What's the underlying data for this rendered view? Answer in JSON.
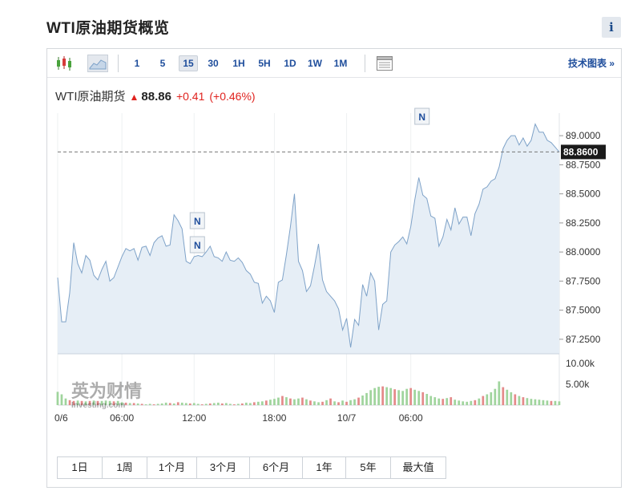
{
  "page": {
    "title": "WTI原油期货概览",
    "info_label": "i"
  },
  "toolbar": {
    "intervals": [
      "1",
      "5",
      "15",
      "30",
      "1H",
      "5H",
      "1D",
      "1W",
      "1M"
    ],
    "active_interval": "15",
    "tech_chart_link": "技术图表 »",
    "icons": [
      "candlestick-icon",
      "area-chart-icon",
      "table-icon"
    ]
  },
  "quote": {
    "name": "WTI原油期货",
    "price": "88.86",
    "change": "+0.41",
    "change_pct": "(+0.46%)"
  },
  "ranges": [
    "1日",
    "1周",
    "1个月",
    "3个月",
    "6个月",
    "1年",
    "5年",
    "最大值"
  ],
  "watermark": {
    "cn": "英为财情",
    "en": "Investing.com"
  },
  "colors": {
    "up": "#e0231f",
    "link": "#1f4e9c",
    "area_fill": "#e6eef6",
    "area_line": "#7ea2c8",
    "vol_up": "#9fd49c",
    "vol_down": "#e48989"
  },
  "chart_data": {
    "type": "area",
    "ylim": [
      87.125,
      89.125
    ],
    "y_ticks": [
      "89.0000",
      "88.7500",
      "88.5000",
      "88.2500",
      "88.0000",
      "87.7500",
      "87.5000",
      "87.2500"
    ],
    "last_price_label": "88.8600",
    "last_price": 88.86,
    "x_tick_labels": [
      "0/6",
      "06:00",
      "12:00",
      "18:00",
      "10/7",
      "06:00"
    ],
    "x_tick_index": [
      0,
      16,
      34,
      54,
      72,
      88
    ],
    "news_markers": [
      {
        "label": "N",
        "index": 35
      },
      {
        "label": "N",
        "index": 35
      },
      {
        "label": "N",
        "index": 91
      }
    ],
    "volume_ticks": [
      "10.00k",
      "5.00k"
    ],
    "volume_max": 10000,
    "price": [
      87.78,
      87.4,
      87.4,
      87.65,
      88.08,
      87.9,
      87.82,
      87.97,
      87.93,
      87.8,
      87.76,
      87.85,
      87.92,
      87.75,
      87.78,
      87.87,
      87.96,
      88.03,
      88.01,
      88.03,
      87.93,
      88.04,
      88.05,
      87.97,
      88.08,
      88.12,
      88.14,
      88.05,
      88.06,
      88.32,
      88.27,
      88.2,
      87.92,
      87.9,
      87.96,
      87.97,
      87.96,
      88.0,
      88.05,
      87.96,
      87.95,
      87.92,
      88.0,
      87.93,
      87.92,
      87.95,
      87.91,
      87.84,
      87.81,
      87.74,
      87.73,
      87.56,
      87.62,
      87.58,
      87.48,
      87.74,
      87.76,
      87.98,
      88.22,
      88.5,
      87.92,
      87.84,
      87.66,
      87.71,
      87.88,
      88.07,
      87.76,
      87.66,
      87.62,
      87.58,
      87.51,
      87.33,
      87.43,
      87.18,
      87.42,
      87.37,
      87.72,
      87.62,
      87.82,
      87.75,
      87.33,
      87.55,
      87.58,
      88.0,
      88.06,
      88.09,
      88.13,
      88.07,
      88.22,
      88.45,
      88.64,
      88.49,
      88.46,
      88.31,
      88.29,
      88.05,
      88.13,
      88.28,
      88.19,
      88.38,
      88.24,
      88.3,
      88.3,
      88.14,
      88.33,
      88.41,
      88.54,
      88.56,
      88.61,
      88.63,
      88.73,
      88.89,
      88.96,
      89.0,
      89.0,
      88.92,
      88.98,
      88.91,
      88.96,
      89.1,
      89.03,
      89.03,
      88.96,
      88.94,
      88.9,
      88.86
    ],
    "volume": [
      3200,
      2600,
      1600,
      1200,
      1000,
      1100,
      1000,
      900,
      1000,
      1100,
      1000,
      1000,
      1100,
      1000,
      900,
      1000,
      700,
      600,
      500,
      500,
      400,
      300,
      200,
      300,
      200,
      300,
      400,
      600,
      500,
      400,
      700,
      600,
      500,
      400,
      500,
      300,
      200,
      300,
      400,
      500,
      600,
      400,
      500,
      300,
      200,
      300,
      400,
      600,
      500,
      700,
      800,
      900,
      1100,
      1300,
      1500,
      1800,
      2200,
      1900,
      1600,
      1400,
      1600,
      1800,
      1400,
      1100,
      900,
      700,
      800,
      1200,
      1600,
      900,
      700,
      1100,
      800,
      1200,
      1400,
      1800,
      2300,
      2900,
      3600,
      4100,
      4400,
      4500,
      4300,
      4100,
      3800,
      3600,
      3400,
      3900,
      4100,
      3700,
      3400,
      3100,
      2700,
      2200,
      1900,
      1600,
      1500,
      1700,
      1900,
      1300,
      1100,
      900,
      800,
      1000,
      1200,
      1600,
      2200,
      2600,
      3100,
      3900,
      5700,
      4300,
      3700,
      3100,
      2600,
      2200,
      1900,
      1700,
      1500,
      1400,
      1300,
      1200,
      1100,
      1000,
      1000,
      900
    ],
    "volume_up": [
      1,
      1,
      1,
      0,
      0,
      1,
      0,
      1,
      0,
      1,
      0,
      1,
      1,
      1,
      0,
      1,
      1,
      0,
      1,
      0,
      1,
      0,
      1,
      1,
      0,
      1,
      1,
      1,
      0,
      1,
      0,
      1,
      1,
      0,
      1,
      1,
      0,
      1,
      0,
      1,
      1,
      0,
      1,
      1,
      0,
      1,
      0,
      1,
      1,
      0,
      1,
      1,
      0,
      1,
      1,
      1,
      0,
      1,
      0,
      1,
      1,
      0,
      1,
      0,
      1,
      1,
      0,
      1,
      0,
      1,
      0,
      1,
      0,
      1,
      1,
      0,
      1,
      1,
      1,
      1,
      1,
      0,
      1,
      1,
      0,
      1,
      1,
      1,
      0,
      1,
      1,
      0,
      1,
      1,
      1,
      1,
      0,
      1,
      0,
      1,
      1,
      1,
      1,
      1,
      0,
      1,
      0,
      1,
      1,
      1,
      1,
      0,
      1,
      1,
      0,
      1,
      0,
      1,
      1,
      1,
      1,
      1,
      1,
      0,
      1,
      1
    ]
  }
}
